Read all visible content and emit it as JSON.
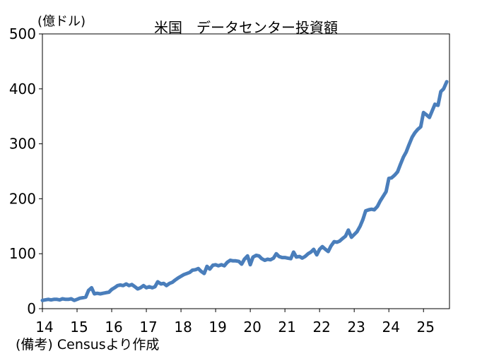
{
  "chart_data": {
    "type": "line",
    "title": "米国　データセンター投資額",
    "unit_label": "(億ドル)",
    "note": "(備考) Censusより作成",
    "ylim": [
      0,
      500
    ],
    "yticks": [
      "0",
      "100",
      "200",
      "300",
      "400",
      "500"
    ],
    "xlim": [
      14.0,
      25.75
    ],
    "xticks": [
      "14",
      "15",
      "16",
      "17",
      "18",
      "19",
      "20",
      "21",
      "22",
      "23",
      "24",
      "25"
    ],
    "grid": false,
    "line_color": "#4a7ebb",
    "series": [
      {
        "x": [
          14.0,
          14.08,
          14.17,
          14.25,
          14.33,
          14.42,
          14.5,
          14.58,
          14.67,
          14.75,
          14.83,
          14.92,
          15.0,
          15.08,
          15.17,
          15.25,
          15.33,
          15.42,
          15.5,
          15.58,
          15.67,
          15.75,
          15.83,
          15.92,
          16.0,
          16.08,
          16.17,
          16.25,
          16.33,
          16.42,
          16.5,
          16.58,
          16.67,
          16.75,
          16.83,
          16.92,
          17.0,
          17.08,
          17.17,
          17.25,
          17.33,
          17.42,
          17.5,
          17.58,
          17.67,
          17.75,
          17.83,
          17.92,
          18.0,
          18.08,
          18.17,
          18.25,
          18.33,
          18.42,
          18.5,
          18.58,
          18.67,
          18.75,
          18.83,
          18.92,
          19.0,
          19.08,
          19.17,
          19.25,
          19.33,
          19.42,
          19.5,
          19.58,
          19.67,
          19.75,
          19.83,
          19.92,
          20.0,
          20.08,
          20.17,
          20.25,
          20.33,
          20.42,
          20.5,
          20.58,
          20.67,
          20.75,
          20.83,
          20.92,
          21.0,
          21.08,
          21.17,
          21.25,
          21.33,
          21.42,
          21.5,
          21.58,
          21.67,
          21.75,
          21.83,
          21.92,
          22.0,
          22.08,
          22.17,
          22.25,
          22.33,
          22.42,
          22.5,
          22.58,
          22.67,
          22.75,
          22.83,
          22.92,
          23.0,
          23.08,
          23.17,
          23.25,
          23.33,
          23.42,
          23.5,
          23.58,
          23.67,
          23.75,
          23.83,
          23.92,
          24.0,
          24.08,
          24.17,
          24.25,
          24.33,
          24.42,
          24.5,
          24.58,
          24.67,
          24.75,
          24.83,
          24.92,
          25.0,
          25.08,
          25.17,
          25.25,
          25.33,
          25.42,
          25.5,
          25.58,
          25.67
        ],
        "values": [
          15,
          16,
          17,
          16,
          17,
          17,
          16,
          18,
          17,
          17,
          18,
          15,
          17,
          19,
          20,
          21,
          33,
          38,
          27,
          28,
          27,
          28,
          29,
          30,
          35,
          38,
          42,
          43,
          42,
          45,
          42,
          44,
          40,
          36,
          38,
          42,
          38,
          40,
          38,
          40,
          49,
          45,
          46,
          42,
          46,
          48,
          52,
          56,
          59,
          62,
          64,
          66,
          70,
          71,
          73,
          68,
          64,
          77,
          72,
          79,
          80,
          78,
          80,
          78,
          84,
          88,
          87,
          87,
          86,
          81,
          90,
          96,
          80,
          94,
          97,
          96,
          91,
          88,
          90,
          89,
          92,
          100,
          95,
          93,
          93,
          92,
          91,
          103,
          94,
          95,
          92,
          95,
          100,
          103,
          108,
          98,
          108,
          113,
          108,
          104,
          114,
          122,
          121,
          123,
          128,
          132,
          143,
          130,
          135,
          140,
          150,
          162,
          178,
          180,
          181,
          180,
          186,
          196,
          204,
          213,
          237,
          238,
          243,
          249,
          262,
          276,
          285,
          298,
          312,
          320,
          326,
          331,
          357,
          353,
          348,
          360,
          372,
          370,
          395,
          400,
          413
        ]
      }
    ]
  }
}
